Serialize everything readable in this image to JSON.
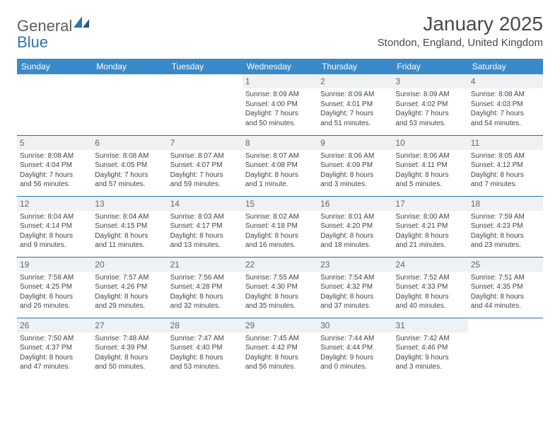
{
  "logo": {
    "part1": "General",
    "part2": "Blue"
  },
  "title": "January 2025",
  "location": "Stondon, England, United Kingdom",
  "colors": {
    "header_bg": "#3a8ac9",
    "header_text": "#ffffff",
    "row_divider": "#2e6da4",
    "daynum_bg": "#eef2f5",
    "text": "#444444",
    "logo_gray": "#5b5b5b",
    "logo_blue": "#2e75b6"
  },
  "weekdays": [
    "Sunday",
    "Monday",
    "Tuesday",
    "Wednesday",
    "Thursday",
    "Friday",
    "Saturday"
  ],
  "weeks": [
    [
      null,
      null,
      null,
      {
        "day": "1",
        "sunrise": "Sunrise: 8:09 AM",
        "sunset": "Sunset: 4:00 PM",
        "dl1": "Daylight: 7 hours",
        "dl2": "and 50 minutes."
      },
      {
        "day": "2",
        "sunrise": "Sunrise: 8:09 AM",
        "sunset": "Sunset: 4:01 PM",
        "dl1": "Daylight: 7 hours",
        "dl2": "and 51 minutes."
      },
      {
        "day": "3",
        "sunrise": "Sunrise: 8:09 AM",
        "sunset": "Sunset: 4:02 PM",
        "dl1": "Daylight: 7 hours",
        "dl2": "and 53 minutes."
      },
      {
        "day": "4",
        "sunrise": "Sunrise: 8:08 AM",
        "sunset": "Sunset: 4:03 PM",
        "dl1": "Daylight: 7 hours",
        "dl2": "and 54 minutes."
      }
    ],
    [
      {
        "day": "5",
        "sunrise": "Sunrise: 8:08 AM",
        "sunset": "Sunset: 4:04 PM",
        "dl1": "Daylight: 7 hours",
        "dl2": "and 56 minutes."
      },
      {
        "day": "6",
        "sunrise": "Sunrise: 8:08 AM",
        "sunset": "Sunset: 4:05 PM",
        "dl1": "Daylight: 7 hours",
        "dl2": "and 57 minutes."
      },
      {
        "day": "7",
        "sunrise": "Sunrise: 8:07 AM",
        "sunset": "Sunset: 4:07 PM",
        "dl1": "Daylight: 7 hours",
        "dl2": "and 59 minutes."
      },
      {
        "day": "8",
        "sunrise": "Sunrise: 8:07 AM",
        "sunset": "Sunset: 4:08 PM",
        "dl1": "Daylight: 8 hours",
        "dl2": "and 1 minute."
      },
      {
        "day": "9",
        "sunrise": "Sunrise: 8:06 AM",
        "sunset": "Sunset: 4:09 PM",
        "dl1": "Daylight: 8 hours",
        "dl2": "and 3 minutes."
      },
      {
        "day": "10",
        "sunrise": "Sunrise: 8:06 AM",
        "sunset": "Sunset: 4:11 PM",
        "dl1": "Daylight: 8 hours",
        "dl2": "and 5 minutes."
      },
      {
        "day": "11",
        "sunrise": "Sunrise: 8:05 AM",
        "sunset": "Sunset: 4:12 PM",
        "dl1": "Daylight: 8 hours",
        "dl2": "and 7 minutes."
      }
    ],
    [
      {
        "day": "12",
        "sunrise": "Sunrise: 8:04 AM",
        "sunset": "Sunset: 4:14 PM",
        "dl1": "Daylight: 8 hours",
        "dl2": "and 9 minutes."
      },
      {
        "day": "13",
        "sunrise": "Sunrise: 8:04 AM",
        "sunset": "Sunset: 4:15 PM",
        "dl1": "Daylight: 8 hours",
        "dl2": "and 11 minutes."
      },
      {
        "day": "14",
        "sunrise": "Sunrise: 8:03 AM",
        "sunset": "Sunset: 4:17 PM",
        "dl1": "Daylight: 8 hours",
        "dl2": "and 13 minutes."
      },
      {
        "day": "15",
        "sunrise": "Sunrise: 8:02 AM",
        "sunset": "Sunset: 4:18 PM",
        "dl1": "Daylight: 8 hours",
        "dl2": "and 16 minutes."
      },
      {
        "day": "16",
        "sunrise": "Sunrise: 8:01 AM",
        "sunset": "Sunset: 4:20 PM",
        "dl1": "Daylight: 8 hours",
        "dl2": "and 18 minutes."
      },
      {
        "day": "17",
        "sunrise": "Sunrise: 8:00 AM",
        "sunset": "Sunset: 4:21 PM",
        "dl1": "Daylight: 8 hours",
        "dl2": "and 21 minutes."
      },
      {
        "day": "18",
        "sunrise": "Sunrise: 7:59 AM",
        "sunset": "Sunset: 4:23 PM",
        "dl1": "Daylight: 8 hours",
        "dl2": "and 23 minutes."
      }
    ],
    [
      {
        "day": "19",
        "sunrise": "Sunrise: 7:58 AM",
        "sunset": "Sunset: 4:25 PM",
        "dl1": "Daylight: 8 hours",
        "dl2": "and 26 minutes."
      },
      {
        "day": "20",
        "sunrise": "Sunrise: 7:57 AM",
        "sunset": "Sunset: 4:26 PM",
        "dl1": "Daylight: 8 hours",
        "dl2": "and 29 minutes."
      },
      {
        "day": "21",
        "sunrise": "Sunrise: 7:56 AM",
        "sunset": "Sunset: 4:28 PM",
        "dl1": "Daylight: 8 hours",
        "dl2": "and 32 minutes."
      },
      {
        "day": "22",
        "sunrise": "Sunrise: 7:55 AM",
        "sunset": "Sunset: 4:30 PM",
        "dl1": "Daylight: 8 hours",
        "dl2": "and 35 minutes."
      },
      {
        "day": "23",
        "sunrise": "Sunrise: 7:54 AM",
        "sunset": "Sunset: 4:32 PM",
        "dl1": "Daylight: 8 hours",
        "dl2": "and 37 minutes."
      },
      {
        "day": "24",
        "sunrise": "Sunrise: 7:52 AM",
        "sunset": "Sunset: 4:33 PM",
        "dl1": "Daylight: 8 hours",
        "dl2": "and 40 minutes."
      },
      {
        "day": "25",
        "sunrise": "Sunrise: 7:51 AM",
        "sunset": "Sunset: 4:35 PM",
        "dl1": "Daylight: 8 hours",
        "dl2": "and 44 minutes."
      }
    ],
    [
      {
        "day": "26",
        "sunrise": "Sunrise: 7:50 AM",
        "sunset": "Sunset: 4:37 PM",
        "dl1": "Daylight: 8 hours",
        "dl2": "and 47 minutes."
      },
      {
        "day": "27",
        "sunrise": "Sunrise: 7:48 AM",
        "sunset": "Sunset: 4:39 PM",
        "dl1": "Daylight: 8 hours",
        "dl2": "and 50 minutes."
      },
      {
        "day": "28",
        "sunrise": "Sunrise: 7:47 AM",
        "sunset": "Sunset: 4:40 PM",
        "dl1": "Daylight: 8 hours",
        "dl2": "and 53 minutes."
      },
      {
        "day": "29",
        "sunrise": "Sunrise: 7:45 AM",
        "sunset": "Sunset: 4:42 PM",
        "dl1": "Daylight: 8 hours",
        "dl2": "and 56 minutes."
      },
      {
        "day": "30",
        "sunrise": "Sunrise: 7:44 AM",
        "sunset": "Sunset: 4:44 PM",
        "dl1": "Daylight: 9 hours",
        "dl2": "and 0 minutes."
      },
      {
        "day": "31",
        "sunrise": "Sunrise: 7:42 AM",
        "sunset": "Sunset: 4:46 PM",
        "dl1": "Daylight: 9 hours",
        "dl2": "and 3 minutes."
      },
      null
    ]
  ]
}
